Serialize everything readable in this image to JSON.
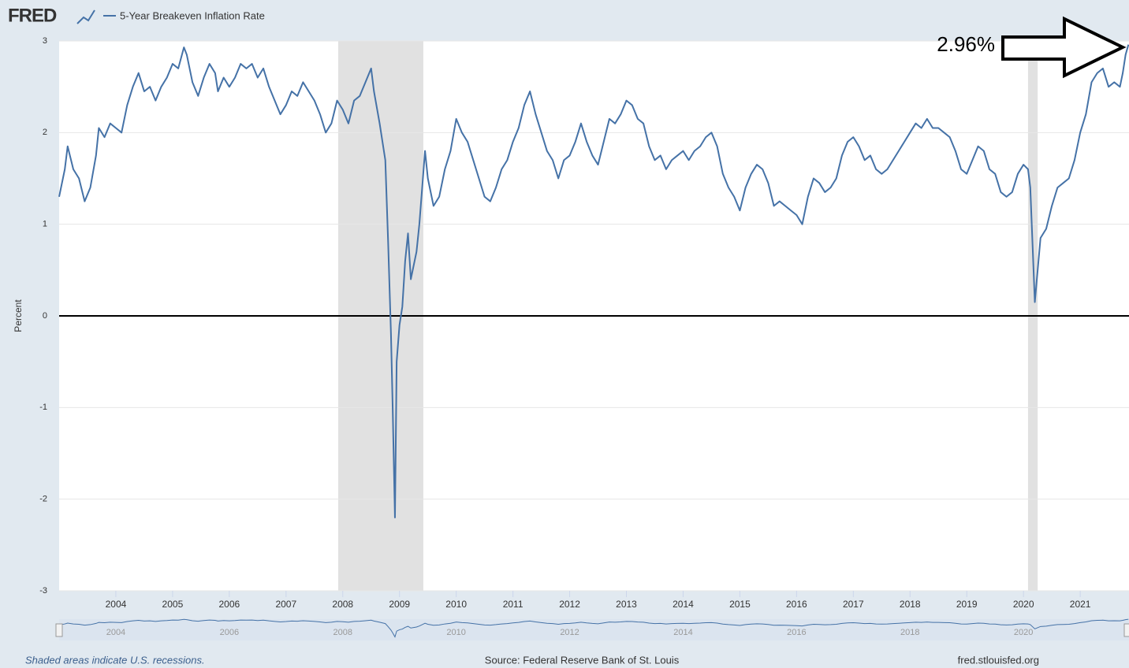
{
  "logo": "FRED",
  "footer": {
    "left": "Shaded areas indicate U.S. recessions.",
    "center": "Source: Federal Reserve Bank of St. Louis",
    "right": "fred.stlouisfed.org"
  },
  "chart_data": {
    "type": "line",
    "ylabel": "Percent",
    "xlim": [
      2003.0,
      2021.86
    ],
    "xticks": [
      2004,
      2005,
      2006,
      2007,
      2008,
      2009,
      2010,
      2011,
      2012,
      2013,
      2014,
      2015,
      2016,
      2017,
      2018,
      2019,
      2020,
      2021
    ],
    "ylim": [
      -3,
      3
    ],
    "yticks": [
      -3,
      -2,
      -1,
      0,
      1,
      2,
      3
    ],
    "grid": true,
    "recessions": [
      [
        2007.92,
        2009.42
      ],
      [
        2020.08,
        2020.25
      ]
    ],
    "annotations": [
      {
        "text": "2.96%"
      }
    ],
    "x": [
      2003.0,
      2003.1,
      2003.15,
      2003.25,
      2003.35,
      2003.45,
      2003.55,
      2003.65,
      2003.7,
      2003.8,
      2003.9,
      2004.0,
      2004.1,
      2004.2,
      2004.3,
      2004.4,
      2004.5,
      2004.6,
      2004.7,
      2004.8,
      2004.9,
      2005.0,
      2005.1,
      2005.2,
      2005.25,
      2005.35,
      2005.45,
      2005.55,
      2005.65,
      2005.75,
      2005.8,
      2005.9,
      2006.0,
      2006.1,
      2006.2,
      2006.3,
      2006.4,
      2006.5,
      2006.6,
      2006.7,
      2006.8,
      2006.9,
      2007.0,
      2007.1,
      2007.2,
      2007.3,
      2007.4,
      2007.5,
      2007.6,
      2007.7,
      2007.8,
      2007.9,
      2008.0,
      2008.1,
      2008.2,
      2008.3,
      2008.4,
      2008.5,
      2008.55,
      2008.65,
      2008.7,
      2008.75,
      2008.8,
      2008.85,
      2008.88,
      2008.92,
      2008.95,
      2009.0,
      2009.05,
      2009.1,
      2009.15,
      2009.2,
      2009.3,
      2009.35,
      2009.4,
      2009.45,
      2009.5,
      2009.6,
      2009.7,
      2009.8,
      2009.9,
      2010.0,
      2010.1,
      2010.2,
      2010.3,
      2010.4,
      2010.5,
      2010.6,
      2010.7,
      2010.8,
      2010.9,
      2011.0,
      2011.1,
      2011.2,
      2011.3,
      2011.4,
      2011.5,
      2011.6,
      2011.7,
      2011.8,
      2011.9,
      2012.0,
      2012.1,
      2012.2,
      2012.3,
      2012.4,
      2012.5,
      2012.6,
      2012.7,
      2012.8,
      2012.9,
      2013.0,
      2013.1,
      2013.2,
      2013.3,
      2013.4,
      2013.5,
      2013.6,
      2013.7,
      2013.8,
      2013.9,
      2014.0,
      2014.1,
      2014.2,
      2014.3,
      2014.4,
      2014.5,
      2014.6,
      2014.7,
      2014.8,
      2014.9,
      2015.0,
      2015.1,
      2015.2,
      2015.3,
      2015.4,
      2015.5,
      2015.6,
      2015.7,
      2015.8,
      2015.9,
      2016.0,
      2016.1,
      2016.2,
      2016.3,
      2016.4,
      2016.5,
      2016.6,
      2016.7,
      2016.8,
      2016.9,
      2017.0,
      2017.1,
      2017.2,
      2017.3,
      2017.4,
      2017.5,
      2017.6,
      2017.7,
      2017.8,
      2017.9,
      2018.0,
      2018.1,
      2018.2,
      2018.3,
      2018.4,
      2018.5,
      2018.6,
      2018.7,
      2018.8,
      2018.9,
      2019.0,
      2019.1,
      2019.2,
      2019.3,
      2019.4,
      2019.5,
      2019.6,
      2019.7,
      2019.8,
      2019.9,
      2020.0,
      2020.08,
      2020.12,
      2020.2,
      2020.25,
      2020.3,
      2020.4,
      2020.5,
      2020.6,
      2020.7,
      2020.8,
      2020.9,
      2021.0,
      2021.1,
      2021.2,
      2021.3,
      2021.4,
      2021.5,
      2021.6,
      2021.7,
      2021.75,
      2021.8,
      2021.85
    ],
    "series": [
      {
        "name": "5-Year Breakeven Inflation Rate",
        "color": "#4572a7",
        "values": [
          1.3,
          1.6,
          1.85,
          1.6,
          1.5,
          1.25,
          1.4,
          1.75,
          2.05,
          1.95,
          2.1,
          2.05,
          2.0,
          2.3,
          2.5,
          2.65,
          2.45,
          2.5,
          2.35,
          2.5,
          2.6,
          2.75,
          2.7,
          2.93,
          2.85,
          2.55,
          2.4,
          2.6,
          2.75,
          2.65,
          2.45,
          2.6,
          2.5,
          2.6,
          2.75,
          2.7,
          2.75,
          2.6,
          2.7,
          2.5,
          2.35,
          2.2,
          2.3,
          2.45,
          2.4,
          2.55,
          2.45,
          2.35,
          2.2,
          2.0,
          2.1,
          2.35,
          2.25,
          2.1,
          2.35,
          2.4,
          2.55,
          2.7,
          2.45,
          2.1,
          1.9,
          1.7,
          0.8,
          -0.2,
          -1.0,
          -2.2,
          -0.5,
          -0.1,
          0.1,
          0.6,
          0.9,
          0.4,
          0.7,
          1.0,
          1.4,
          1.8,
          1.5,
          1.2,
          1.3,
          1.6,
          1.8,
          2.15,
          2.0,
          1.9,
          1.7,
          1.5,
          1.3,
          1.25,
          1.4,
          1.6,
          1.7,
          1.9,
          2.05,
          2.3,
          2.45,
          2.2,
          2.0,
          1.8,
          1.7,
          1.5,
          1.7,
          1.75,
          1.9,
          2.1,
          1.9,
          1.75,
          1.65,
          1.9,
          2.15,
          2.1,
          2.2,
          2.35,
          2.3,
          2.15,
          2.1,
          1.85,
          1.7,
          1.75,
          1.6,
          1.7,
          1.75,
          1.8,
          1.7,
          1.8,
          1.85,
          1.95,
          2.0,
          1.85,
          1.55,
          1.4,
          1.3,
          1.15,
          1.4,
          1.55,
          1.65,
          1.6,
          1.45,
          1.2,
          1.25,
          1.2,
          1.15,
          1.1,
          1.0,
          1.3,
          1.5,
          1.45,
          1.35,
          1.4,
          1.5,
          1.75,
          1.9,
          1.95,
          1.85,
          1.7,
          1.75,
          1.6,
          1.55,
          1.6,
          1.7,
          1.8,
          1.9,
          2.0,
          2.1,
          2.05,
          2.15,
          2.05,
          2.05,
          2.0,
          1.95,
          1.8,
          1.6,
          1.55,
          1.7,
          1.85,
          1.8,
          1.6,
          1.55,
          1.35,
          1.3,
          1.35,
          1.55,
          1.65,
          1.6,
          1.4,
          0.15,
          0.5,
          0.85,
          0.95,
          1.2,
          1.4,
          1.45,
          1.5,
          1.7,
          2.0,
          2.2,
          2.55,
          2.65,
          2.7,
          2.5,
          2.55,
          2.5,
          2.65,
          2.85,
          2.96
        ]
      }
    ]
  }
}
